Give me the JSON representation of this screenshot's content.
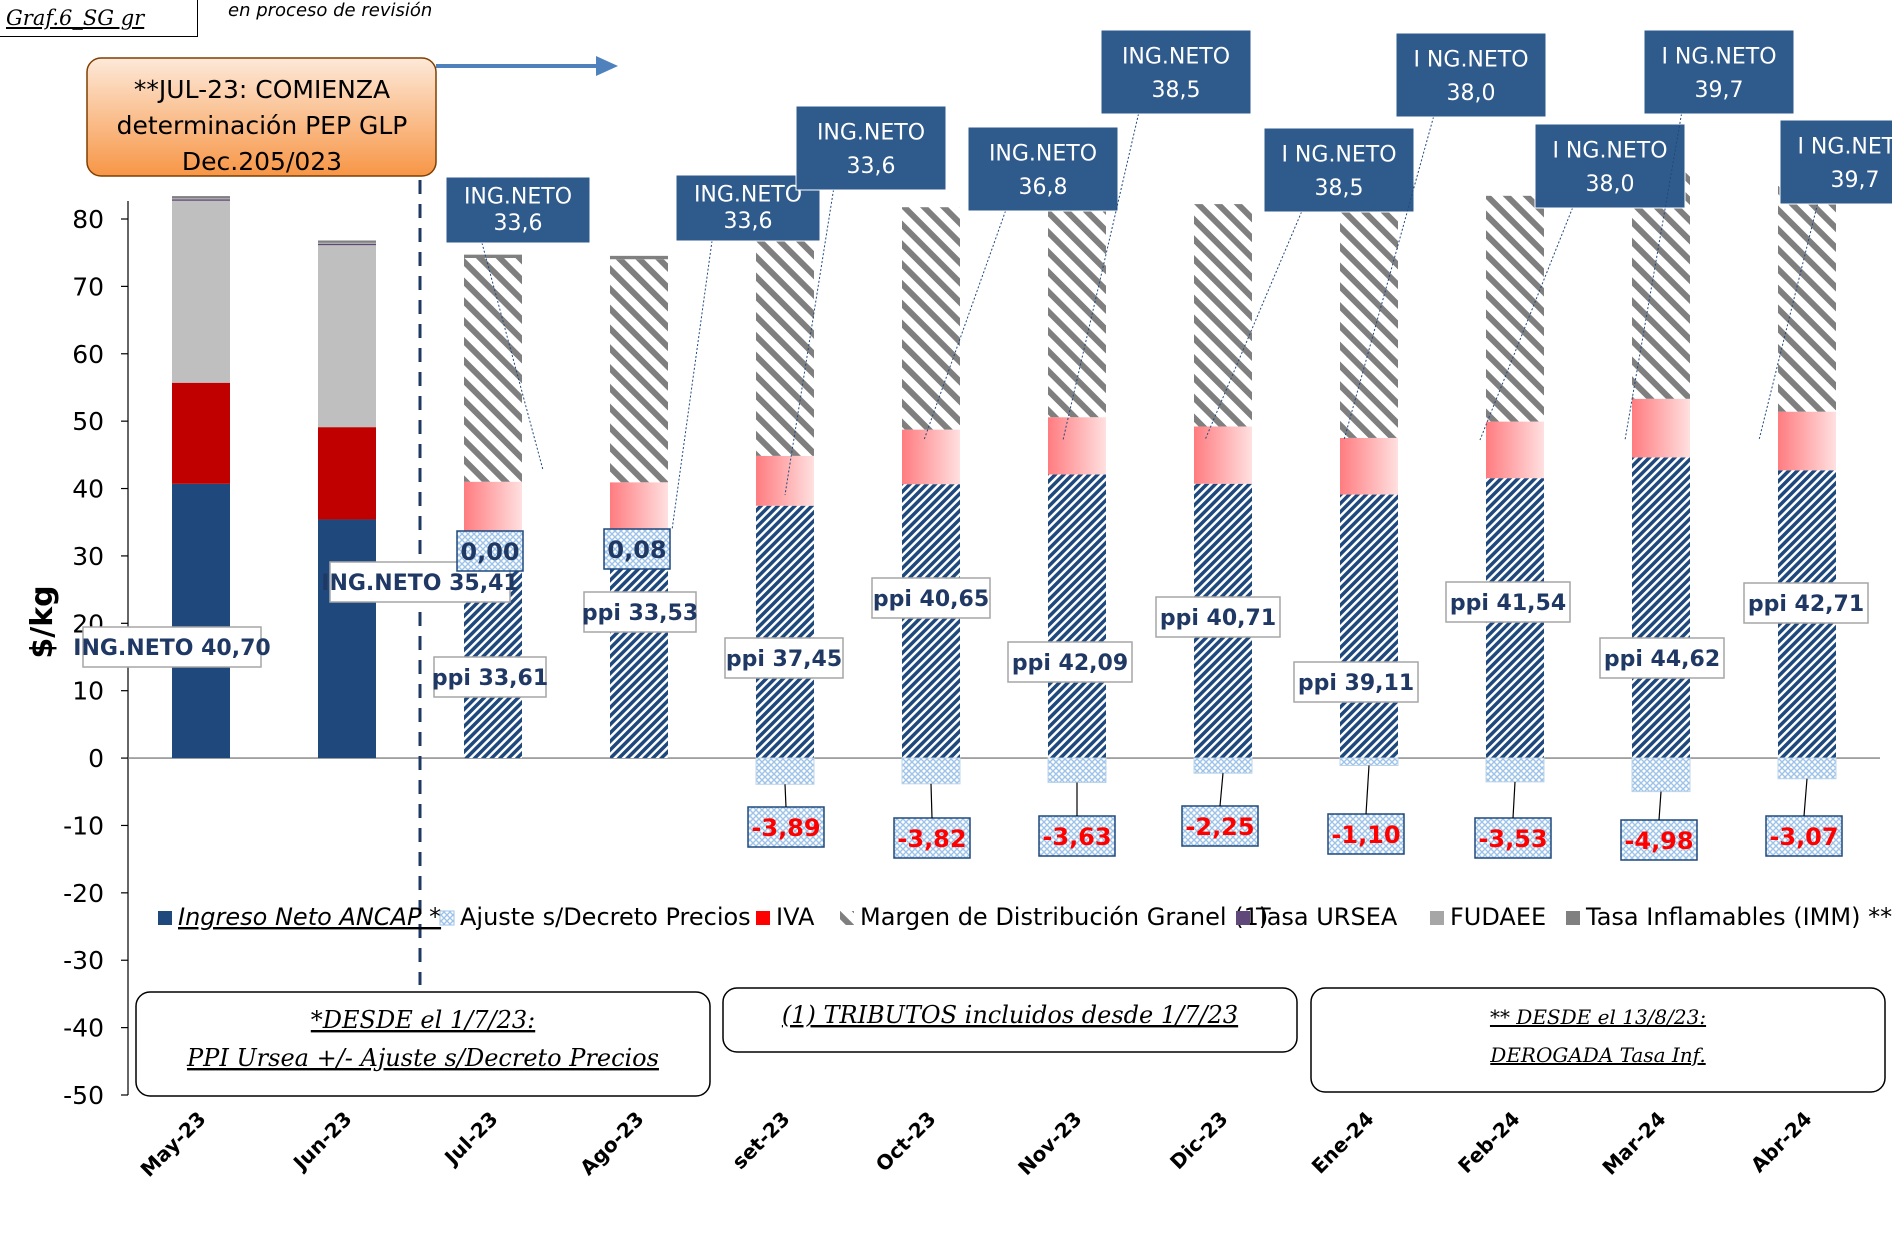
{
  "header": {
    "graph_id": "Graf.6_SG gr",
    "review_note": "en proceso de revisión"
  },
  "callout_jul23": {
    "lines": [
      "**JUL-23: COMIENZA",
      "determinación PEP GLP",
      "Dec.205/023"
    ]
  },
  "notes": {
    "box1_line1": "*DESDE el 1/7/23:",
    "box1_line2": "PPI Ursea +/- Ajuste s/Decreto Precios",
    "box2": "(1) TRIBUTOS incluidos desde 1/7/23",
    "box3_line1": "** DESDE el 13/8/23:",
    "box3_line2": "DEROGADA Tasa Inf."
  },
  "colors": {
    "ingreso_neto": "#1F497D",
    "iva": "#C00000",
    "iva_gradient_light": "#FFE0E0",
    "iva_gradient_dark": "#FF7C80",
    "margen_gray": "#BFBFBF",
    "ajuste": "#9DC3E6",
    "callout_orange": "#F79646",
    "label_box": "#2F5A8C",
    "red_text": "#FF0000"
  },
  "chart_data": {
    "type": "bar",
    "stacked": true,
    "ylabel": "$/kg",
    "ylim": [
      -50,
      85
    ],
    "yticks": [
      -50,
      -40,
      -30,
      -20,
      -10,
      0,
      10,
      20,
      30,
      40,
      50,
      60,
      70,
      80
    ],
    "grid": false,
    "legend_position": "bottom",
    "categories": [
      "May-23",
      "Jun-23",
      "Jul-23",
      "Ago-23",
      "set-23",
      "Oct-23",
      "Nov-23",
      "Dic-23",
      "Ene-24",
      "Feb-24",
      "Mar-24",
      "Abr-24"
    ],
    "series": [
      {
        "name": "Ingreso Neto ANCAP *",
        "values": [
          40.7,
          35.41,
          33.61,
          33.53,
          37.45,
          40.65,
          42.09,
          40.71,
          39.11,
          41.54,
          44.62,
          42.71
        ]
      },
      {
        "name": "Ajuste s/Decreto Precios",
        "values": [
          0,
          0,
          0.0,
          0.08,
          -3.89,
          -3.82,
          -3.63,
          -2.25,
          -1.1,
          -3.53,
          -4.98,
          -3.07
        ]
      },
      {
        "name": "IVA",
        "values": [
          15.0,
          13.7,
          7.4,
          7.4,
          7.4,
          8.1,
          8.5,
          8.5,
          8.4,
          8.4,
          8.7,
          8.7
        ]
      },
      {
        "name": "Margen de Distribución Granel (1)",
        "values": [
          27.0,
          27.0,
          33.2,
          33.1,
          33.0,
          33.0,
          33.0,
          33.0,
          33.5,
          33.5,
          34.0,
          33.5
        ]
      },
      {
        "name": "Tasa URSEA",
        "values": [
          0.2,
          0.2,
          0,
          0,
          0,
          0,
          0,
          0,
          0,
          0,
          0,
          0
        ]
      },
      {
        "name": "FUDAEE",
        "values": [
          0.2,
          0.2,
          0,
          0,
          0,
          0,
          0,
          0,
          0,
          0,
          0,
          0
        ]
      },
      {
        "name": "Tasa Inflamables (IMM) **",
        "values": [
          0.3,
          0.3,
          0.5,
          0.5,
          0,
          0,
          0,
          0,
          0,
          0,
          0,
          0
        ]
      }
    ],
    "ppi_labels": [
      "ING.NETO 40,70",
      "ING.NETO  35,41",
      "ppi 33,61",
      "ppi 33,53",
      "ppi 37,45",
      "ppi 40,65",
      "ppi 42,09",
      "ppi 40,71",
      "ppi 39,11",
      "ppi 41,54",
      "ppi 44,62",
      "ppi 42,71"
    ],
    "ajuste_labels": [
      "",
      "",
      "0,00",
      "0,08",
      "-3,89",
      "-3,82",
      "-3,63",
      "-2,25",
      "-1,10",
      "-3,53",
      "-4,98",
      "-3,07"
    ],
    "ingneto_callouts": [
      {
        "cat": 2,
        "line1": "ING.NETO",
        "line2": "33,6"
      },
      {
        "cat": 3,
        "line1": "ING.NETO",
        "line2": "33,6"
      },
      {
        "cat": 4,
        "line1": "ING.NETO",
        "line2": "33,6"
      },
      {
        "cat": 5,
        "line1": "ING.NETO",
        "line2": "36,8"
      },
      {
        "cat": 6,
        "line1": "ING.NETO",
        "line2": "38,5"
      },
      {
        "cat": 7,
        "line1": "I NG.NETO",
        "line2": "38,5"
      },
      {
        "cat": 8,
        "line1": "I NG.NETO",
        "line2": "38,0"
      },
      {
        "cat": 9,
        "line1": "I NG.NETO",
        "line2": "38,0"
      },
      {
        "cat": 10,
        "line1": "I NG.NETO",
        "line2": "39,7"
      },
      {
        "cat": 11,
        "line1": "I NG.NETO",
        "line2": "39,7"
      }
    ]
  }
}
